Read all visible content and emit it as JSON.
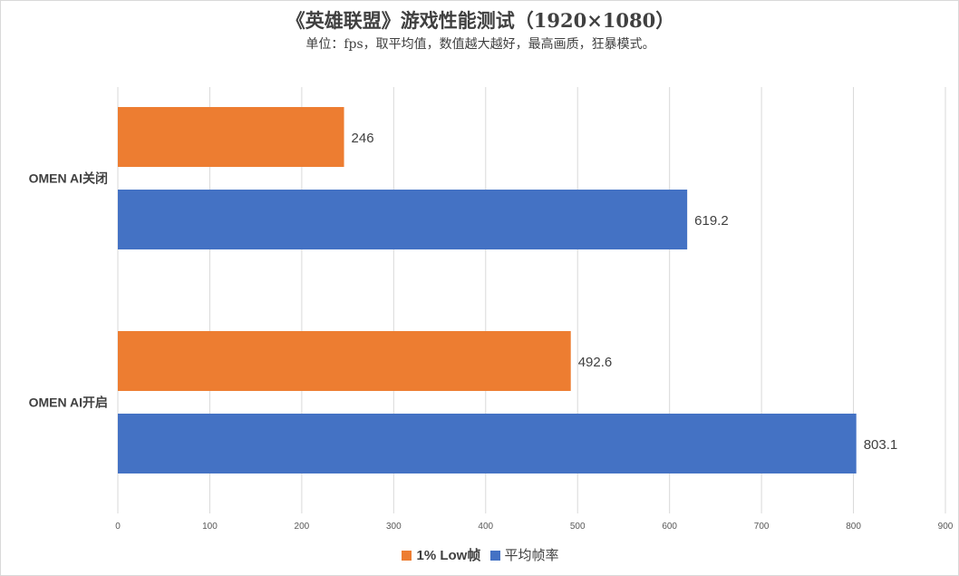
{
  "chart_data": {
    "type": "bar",
    "orientation": "horizontal",
    "title": "《英雄联盟》游戏性能测试（1920×1080）",
    "subtitle": "单位：fps，取平均值，数值越大越好，最高画质，狂暴模式。",
    "categories": [
      "OMEN AI关闭",
      "OMEN AI开启"
    ],
    "series": [
      {
        "name": "1% Low帧",
        "color": "#ED7D31",
        "values": [
          246,
          492.6
        ],
        "labels": [
          "246",
          "492.6"
        ]
      },
      {
        "name": "平均帧率",
        "color": "#4472C4",
        "values": [
          619.2,
          803.1
        ],
        "labels": [
          "619.2",
          "803.1"
        ]
      }
    ],
    "xlim": [
      0,
      900
    ],
    "xticks": [
      "0",
      "100",
      "200",
      "300",
      "400",
      "500",
      "600",
      "700",
      "800",
      "900"
    ],
    "grid": true,
    "legend": "bottom"
  }
}
